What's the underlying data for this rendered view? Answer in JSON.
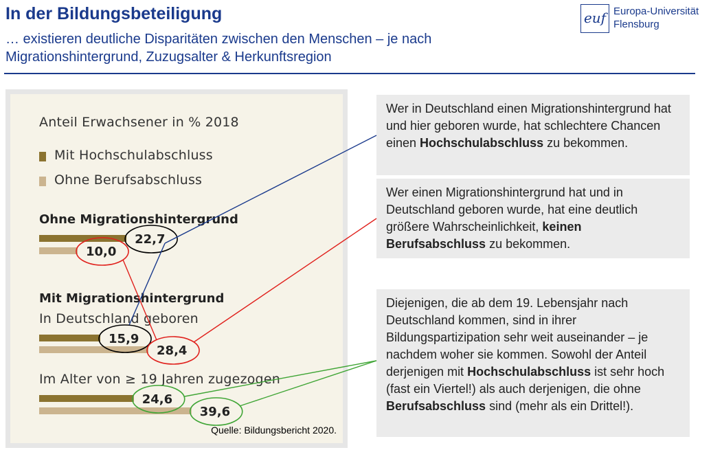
{
  "header": {
    "title": "In der Bildungsbeteiligung",
    "subtitle_line1": "… existieren deutliche Disparitäten zwischen den Menschen – je nach",
    "subtitle_line2": "Migrationshintergrund, Zuzugsalter & Herkunftsregion"
  },
  "logo": {
    "mark": "euf",
    "line1": "Europa-Universität",
    "line2": "Flensburg"
  },
  "colors": {
    "title_blue": "#1a3a8c",
    "series_hochschule": "#8b7330",
    "series_berufsabschluss": "#cbb48f",
    "connector_blue": "#1a3a8c",
    "highlight_red": "#e0201c",
    "highlight_green": "#3fa535",
    "highlight_black": "#000000"
  },
  "chart_data": {
    "type": "bar",
    "title": "Anteil Erwachsener in % 2018",
    "series": [
      {
        "name": "Mit Hochschulabschluss",
        "values": [
          22.7,
          15.9,
          24.6
        ]
      },
      {
        "name": "Ohne Berufsabschluss",
        "values": [
          10.0,
          28.4,
          39.6
        ]
      }
    ],
    "value_labels": {
      "hochschule": [
        "22,7",
        "15,9",
        "24,6"
      ],
      "beruf": [
        "10,0",
        "28,4",
        "39,6"
      ]
    },
    "groups": [
      {
        "heading": "Ohne Migrationshintergrund",
        "sublabel": ""
      },
      {
        "heading": "Mit Migrationshintergrund",
        "sublabel": "In Deutschland geboren"
      },
      {
        "heading": "",
        "sublabel": "Im Alter von ≥ 19 Jahren zugezogen"
      }
    ],
    "legend_position": "top-left",
    "grid": false
  },
  "source_text": "Quelle: Bildungsbericht 2020.",
  "callouts": [
    {
      "segments": [
        {
          "text": "Wer in Deutschland einen Migrationshintergrund hat und hier geboren wurde, hat schlechtere Chancen einen ",
          "bold": false
        },
        {
          "text": "Hochschulabschluss",
          "bold": true
        },
        {
          "text": " zu bekommen.",
          "bold": false
        }
      ]
    },
    {
      "segments": [
        {
          "text": "Wer einen Migrationshintergrund hat und in Deutschland geboren wurde, hat eine deutlich größere Wahrscheinlichkeit, ",
          "bold": false
        },
        {
          "text": "keinen Berufsabschluss",
          "bold": true
        },
        {
          "text": " zu bekommen.",
          "bold": false
        }
      ]
    },
    {
      "segments": [
        {
          "text": "Diejenigen, die ab dem 19. Lebensjahr nach Deutschland kommen, sind in ihrer Bildungspartizipation sehr weit auseinander – je nachdem woher sie kommen. Sowohl der Anteil derjenigen mit ",
          "bold": false
        },
        {
          "text": "Hochschulabschluss",
          "bold": true
        },
        {
          "text": " ist sehr hoch (fast ein Viertel!) als auch derjenigen, die ohne ",
          "bold": false
        },
        {
          "text": "Berufsabschluss",
          "bold": true
        },
        {
          "text": " sind (mehr als ein Drittel!).",
          "bold": false
        }
      ]
    }
  ]
}
